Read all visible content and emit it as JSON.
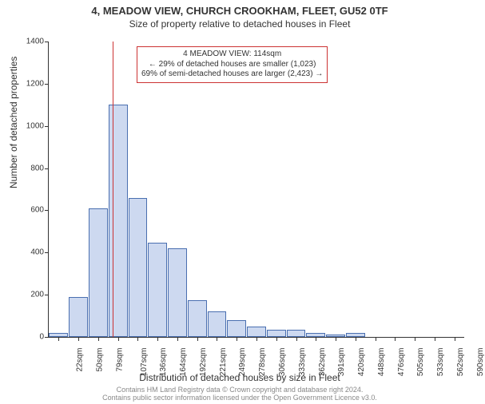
{
  "title": "4, MEADOW VIEW, CHURCH CROOKHAM, FLEET, GU52 0TF",
  "subtitle": "Size of property relative to detached houses in Fleet",
  "ylabel": "Number of detached properties",
  "xlabel": "Distribution of detached houses by size in Fleet",
  "attribution1": "Contains HM Land Registry data © Crown copyright and database right 2024.",
  "attribution2": "Contains public sector information licensed under the Open Government Licence v3.0.",
  "chart": {
    "type": "histogram",
    "ylim": [
      0,
      1400
    ],
    "ytick_step": 200,
    "bar_fill": "#cdd9f0",
    "bar_border": "#4a6fb0",
    "axis_color": "#333333",
    "background": "#ffffff",
    "vline_color": "#cc3333",
    "vline_x_value": 114,
    "x_categories": [
      "22sqm",
      "50sqm",
      "79sqm",
      "107sqm",
      "136sqm",
      "164sqm",
      "192sqm",
      "221sqm",
      "249sqm",
      "278sqm",
      "306sqm",
      "333sqm",
      "362sqm",
      "391sqm",
      "420sqm",
      "448sqm",
      "476sqm",
      "505sqm",
      "533sqm",
      "562sqm",
      "590sqm"
    ],
    "values": [
      20,
      190,
      610,
      1100,
      660,
      445,
      420,
      175,
      120,
      80,
      50,
      35,
      35,
      20,
      10,
      20,
      0,
      0,
      0,
      0,
      0
    ],
    "label_fontsize": 12,
    "tick_fontsize": 10,
    "title_fontsize": 13
  },
  "info_box": {
    "line1": "4 MEADOW VIEW: 114sqm",
    "line2": "← 29% of detached houses are smaller (1,023)",
    "line3": "69% of semi-detached houses are larger (2,423) →",
    "border_color": "#cc3333"
  }
}
